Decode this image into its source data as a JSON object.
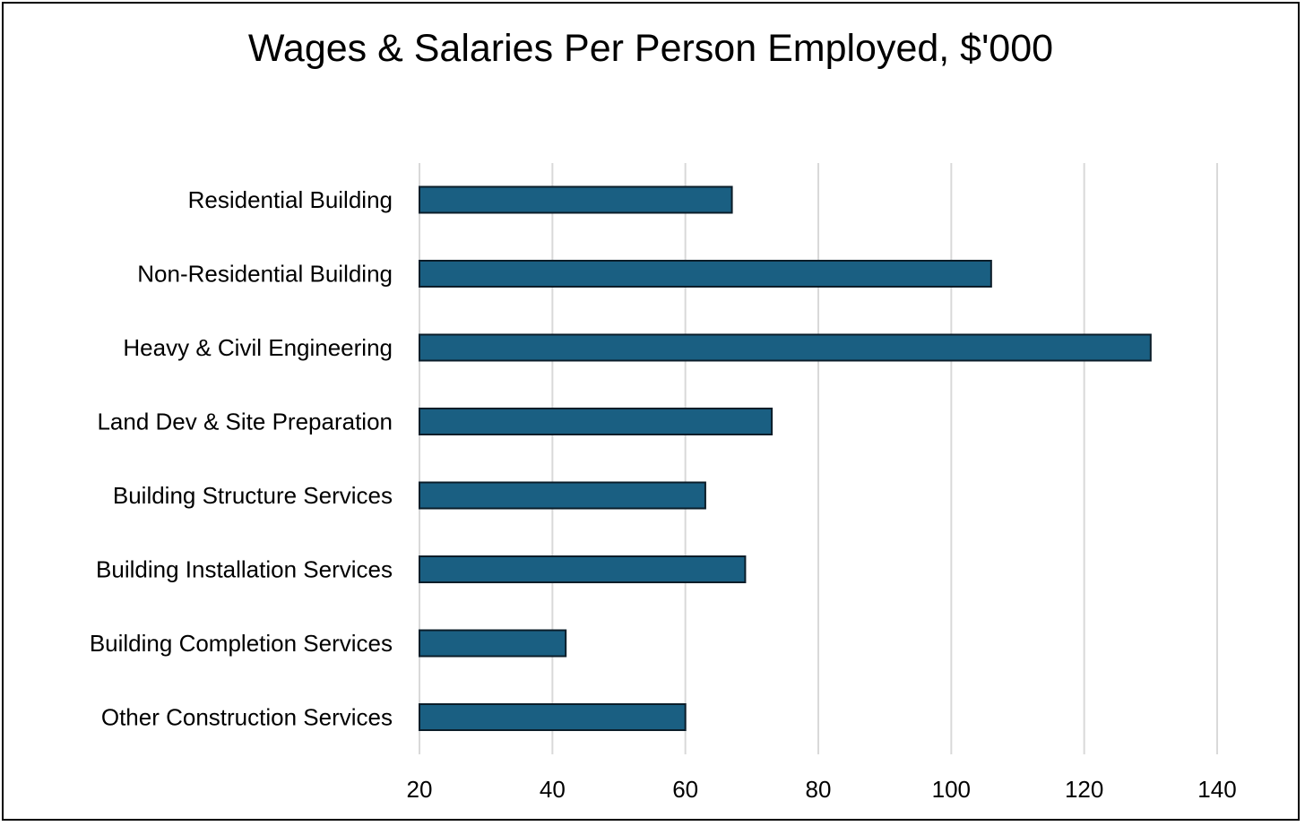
{
  "chart_data": {
    "type": "bar",
    "orientation": "horizontal",
    "title": "Wages & Salaries Per Person Employed, $'000",
    "xlabel": "",
    "ylabel": "",
    "categories": [
      "Residential Building",
      "Non-Residential Building",
      "Heavy & Civil Engineering",
      "Land Dev & Site Preparation",
      "Building Structure Services",
      "Building Installation Services",
      "Building Completion Services",
      "Other Construction Services"
    ],
    "values": [
      67,
      106,
      130,
      73,
      63,
      69,
      42,
      60
    ],
    "xlim": [
      20,
      140
    ],
    "xticks": [
      "20",
      "40",
      "60",
      "80",
      "100",
      "120",
      "140"
    ],
    "grid": "vertical",
    "legend": "none",
    "colors": {
      "bar": "#1a5f82",
      "bar_edge": "#0b1d29",
      "grid": "#d9d9d9"
    }
  }
}
